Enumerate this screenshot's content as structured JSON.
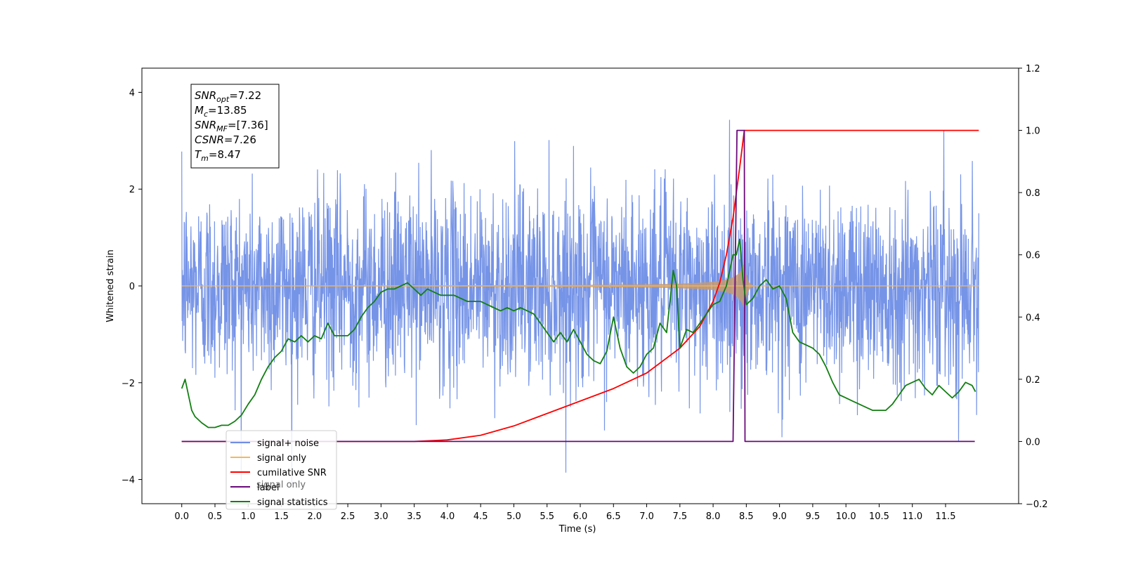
{
  "chart_data": {
    "type": "line",
    "xlabel": "Time (s)",
    "ylabel_left": "Whitened strain",
    "ylabel_right": "",
    "x_ticks": [
      "0.0",
      "0.5",
      "1.0",
      "1.5",
      "2.0",
      "2.5",
      "3.0",
      "3.5",
      "4.0",
      "4.5",
      "5.0",
      "5.5",
      "6.0",
      "6.5",
      "7.0",
      "7.5",
      "8.0",
      "8.5",
      "9.0",
      "9.5",
      "10.0",
      "10.5",
      "11.0",
      "11.5"
    ],
    "y_left_ticks": [
      "−4",
      "−2",
      "0",
      "2",
      "4"
    ],
    "y_right_ticks": [
      "−0.2",
      "0.0",
      "0.2",
      "0.4",
      "0.6",
      "0.8",
      "1.0",
      "1.2"
    ],
    "xlim": [
      -0.6,
      12.6
    ],
    "ylim_left": [
      -4.5,
      4.5
    ],
    "ylim_right": [
      -0.2,
      1.2
    ],
    "grid": false,
    "legend_position": "lower-left",
    "annotation_box": {
      "lines": [
        {
          "base": "SNR",
          "sub": "opt",
          "value": "=7.22"
        },
        {
          "base": "M",
          "sub": "c",
          "value": "=13.85"
        },
        {
          "base": "SNR",
          "sub": "MF",
          "value": "=[7.36]"
        },
        {
          "base": "CSNR",
          "sub": "",
          "value": "=7.26"
        },
        {
          "base": "T",
          "sub": "m",
          "value": "=8.47"
        }
      ]
    },
    "series": [
      {
        "name": "signal+ noise",
        "color": "#6f8ee6",
        "axis": "left",
        "kind": "noise",
        "x_range": [
          0,
          12
        ],
        "amplitude_sigma": 1.0
      },
      {
        "name": "signal only",
        "color": "#f5b85a",
        "axis": "left",
        "kind": "chirp",
        "x_range": [
          0,
          12
        ],
        "merger_time": 8.47,
        "peak_amplitude": 0.5,
        "fill_color": "#c79a6e"
      },
      {
        "name": "cumilative SNR",
        "color": "#ff0000",
        "axis": "right",
        "x": [
          0,
          3.5,
          4.0,
          4.5,
          5.0,
          5.5,
          6.0,
          6.5,
          7.0,
          7.5,
          7.8,
          8.0,
          8.1,
          8.2,
          8.3,
          8.4,
          8.47,
          8.5,
          12.0
        ],
        "y": [
          0,
          0.0,
          0.005,
          0.02,
          0.05,
          0.09,
          0.13,
          0.17,
          0.22,
          0.3,
          0.37,
          0.45,
          0.51,
          0.6,
          0.72,
          0.88,
          1.0,
          1.0,
          1.0
        ]
      },
      {
        "name": "label",
        "color": "#6a0a7a",
        "axis": "right",
        "x": [
          0,
          8.3,
          8.36,
          8.47,
          8.48,
          8.49,
          11.94
        ],
        "y": [
          0,
          0.0,
          1.0,
          1.0,
          0.0,
          0.0,
          0.0
        ]
      },
      {
        "name": "signal statistics",
        "color": "#127f12",
        "axis": "right",
        "x": [
          0,
          0.05,
          0.1,
          0.15,
          0.2,
          0.3,
          0.4,
          0.5,
          0.6,
          0.7,
          0.8,
          0.9,
          1.0,
          1.1,
          1.2,
          1.3,
          1.4,
          1.5,
          1.6,
          1.7,
          1.8,
          1.9,
          2.0,
          2.1,
          2.2,
          2.3,
          2.4,
          2.5,
          2.6,
          2.7,
          2.8,
          2.9,
          3.0,
          3.1,
          3.2,
          3.3,
          3.4,
          3.5,
          3.6,
          3.7,
          3.8,
          3.9,
          4.0,
          4.1,
          4.2,
          4.3,
          4.4,
          4.5,
          4.6,
          4.7,
          4.8,
          4.9,
          5.0,
          5.1,
          5.2,
          5.3,
          5.4,
          5.5,
          5.6,
          5.7,
          5.8,
          5.9,
          6.0,
          6.1,
          6.2,
          6.3,
          6.4,
          6.5,
          6.6,
          6.7,
          6.8,
          6.9,
          7.0,
          7.1,
          7.2,
          7.3,
          7.4,
          7.45,
          7.5,
          7.6,
          7.7,
          7.8,
          7.9,
          8.0,
          8.1,
          8.2,
          8.3,
          8.35,
          8.4,
          8.45,
          8.5,
          8.6,
          8.7,
          8.8,
          8.9,
          9.0,
          9.1,
          9.2,
          9.3,
          9.4,
          9.5,
          9.6,
          9.7,
          9.8,
          9.9,
          10.0,
          10.1,
          10.2,
          10.3,
          10.4,
          10.5,
          10.6,
          10.7,
          10.8,
          10.9,
          11.0,
          11.1,
          11.2,
          11.3,
          11.4,
          11.5,
          11.6,
          11.7,
          11.8,
          11.9,
          11.95
        ],
        "y": [
          0.17,
          0.2,
          0.15,
          0.1,
          0.08,
          0.06,
          0.045,
          0.045,
          0.052,
          0.052,
          0.065,
          0.085,
          0.12,
          0.15,
          0.2,
          0.24,
          0.27,
          0.29,
          0.33,
          0.32,
          0.34,
          0.32,
          0.34,
          0.33,
          0.38,
          0.34,
          0.34,
          0.34,
          0.36,
          0.4,
          0.43,
          0.45,
          0.48,
          0.49,
          0.49,
          0.5,
          0.51,
          0.49,
          0.47,
          0.49,
          0.48,
          0.47,
          0.47,
          0.47,
          0.46,
          0.45,
          0.45,
          0.45,
          0.44,
          0.43,
          0.42,
          0.43,
          0.42,
          0.43,
          0.42,
          0.41,
          0.38,
          0.35,
          0.32,
          0.35,
          0.32,
          0.36,
          0.32,
          0.28,
          0.26,
          0.25,
          0.29,
          0.4,
          0.3,
          0.24,
          0.22,
          0.24,
          0.28,
          0.3,
          0.38,
          0.35,
          0.55,
          0.5,
          0.3,
          0.36,
          0.35,
          0.38,
          0.41,
          0.44,
          0.45,
          0.5,
          0.6,
          0.6,
          0.65,
          0.52,
          0.44,
          0.46,
          0.5,
          0.52,
          0.49,
          0.5,
          0.46,
          0.35,
          0.32,
          0.31,
          0.3,
          0.28,
          0.24,
          0.19,
          0.15,
          0.14,
          0.13,
          0.12,
          0.11,
          0.1,
          0.1,
          0.1,
          0.12,
          0.15,
          0.18,
          0.19,
          0.2,
          0.17,
          0.15,
          0.18,
          0.16,
          0.14,
          0.16,
          0.19,
          0.18,
          0.16
        ]
      },
      {
        "name": "signal only",
        "color": "#d9b8e6",
        "axis": "right",
        "kind": "legend-only"
      }
    ],
    "legend_entries": [
      {
        "label": "signal+ noise",
        "color": "#6f8ee6"
      },
      {
        "label": "signal only",
        "color": "#f5b85a"
      },
      {
        "label": "cumilative SNR",
        "color": "#ff0000"
      },
      {
        "label": "label",
        "color": "#6a0a7a"
      },
      {
        "label": "signal statistics",
        "color": "#127f12"
      }
    ]
  }
}
